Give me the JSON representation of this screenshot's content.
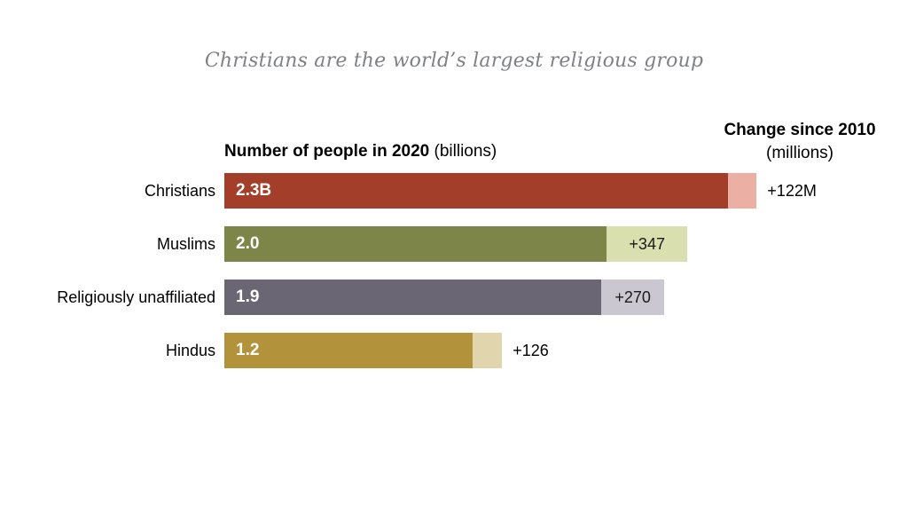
{
  "title": "Christians are the world’s largest religious group",
  "headers": {
    "left_bold": "Number of people in 2020",
    "left_unit": "(billions)",
    "right_bold": "Change since 2010",
    "right_unit": "(millions)"
  },
  "chart_data": {
    "type": "bar",
    "orientation": "horizontal",
    "title": "Christians are the world’s largest religious group",
    "xlabel": "Number of people in 2020 (billions)",
    "legend_position": "none",
    "grid": false,
    "categories": [
      "Christians",
      "Muslims",
      "Religiously unaffiliated",
      "Hindus"
    ],
    "series": [
      {
        "name": "Number of people in 2020 (billions)",
        "values": [
          2.3,
          2.0,
          1.9,
          1.2
        ]
      },
      {
        "name": "Change since 2010 (millions)",
        "values": [
          122,
          347,
          270,
          126
        ]
      }
    ],
    "rows": [
      {
        "category": "Christians",
        "value_billions": 2.3,
        "value_label": "2.3B",
        "change_millions": 122,
        "change_label": "+122M",
        "bar_color": "#a33e2a",
        "tip_color": "#ecafa4"
      },
      {
        "category": "Muslims",
        "value_billions": 2.0,
        "value_label": "2.0",
        "change_millions": 347,
        "change_label": "+347",
        "bar_color": "#7d8648",
        "tip_color": "#d9dfae"
      },
      {
        "category": "Religiously unaffiliated",
        "value_billions": 1.9,
        "value_label": "1.9",
        "change_millions": 270,
        "change_label": "+270",
        "bar_color": "#6b6673",
        "tip_color": "#cbc7d1"
      },
      {
        "category": "Hindus",
        "value_billions": 1.2,
        "value_label": "1.2",
        "change_millions": 126,
        "change_label": "+126",
        "bar_color": "#b2923b",
        "tip_color": "#e0d5ac"
      }
    ]
  },
  "colors": {
    "title_text": "#7f8184",
    "header_text": "#000000",
    "value_text": "#ffffff",
    "change_text": "#1a1a1a",
    "background": "#ffffff"
  }
}
